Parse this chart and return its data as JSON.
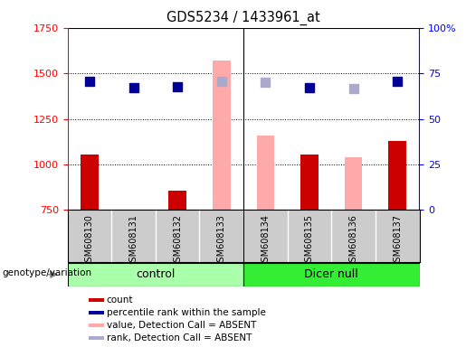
{
  "title": "GDS5234 / 1433961_at",
  "samples": [
    "GSM608130",
    "GSM608131",
    "GSM608132",
    "GSM608133",
    "GSM608134",
    "GSM608135",
    "GSM608136",
    "GSM608137"
  ],
  "count_values": [
    1055,
    752,
    855,
    null,
    null,
    1055,
    null,
    1130
  ],
  "count_absent_values": [
    null,
    null,
    null,
    1570,
    1160,
    null,
    1040,
    null
  ],
  "rank_values": [
    70.5,
    67.0,
    67.5,
    null,
    null,
    67.0,
    null,
    70.5
  ],
  "rank_absent_values": [
    null,
    null,
    null,
    70.5,
    70.0,
    null,
    66.5,
    null
  ],
  "ylim_left": [
    750,
    1750
  ],
  "ylim_right": [
    0,
    100
  ],
  "yticks_left": [
    750,
    1000,
    1250,
    1500,
    1750
  ],
  "yticks_right": [
    0,
    25,
    50,
    75,
    100
  ],
  "color_count": "#cc0000",
  "color_count_absent": "#ffaaaa",
  "color_rank": "#000099",
  "color_rank_absent": "#aaaacc",
  "color_control_bg": "#aaffaa",
  "color_dicer_bg": "#33ee33",
  "color_sample_bg": "#cccccc",
  "dot_size": 55,
  "group_label": "genotype/variation",
  "control_label": "control",
  "dicer_label": "Dicer null",
  "legend_items": [
    {
      "color": "#cc0000",
      "label": "count"
    },
    {
      "color": "#000099",
      "label": "percentile rank within the sample"
    },
    {
      "color": "#ffaaaa",
      "label": "value, Detection Call = ABSENT"
    },
    {
      "color": "#aaaacc",
      "label": "rank, Detection Call = ABSENT"
    }
  ]
}
